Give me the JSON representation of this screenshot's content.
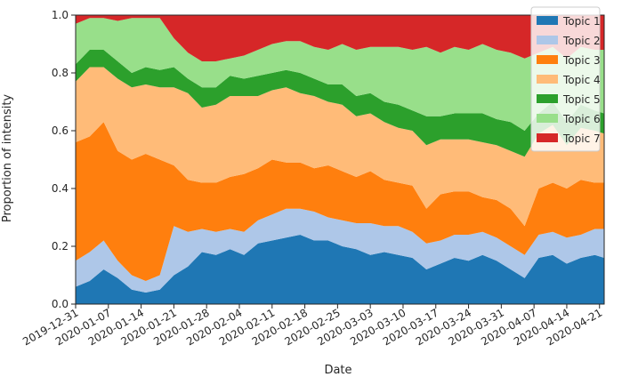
{
  "chart_data": {
    "type": "area",
    "stacked": true,
    "normalized": true,
    "title": "",
    "xlabel": "Date",
    "ylabel": "Proportion of intensity",
    "ylim": [
      0.0,
      1.0
    ],
    "xlim": [
      "2019-12-31",
      "2020-04-22"
    ],
    "yticks": [
      "0.0",
      "0.2",
      "0.4",
      "0.6",
      "0.8",
      "1.0"
    ],
    "xticks": [
      "2019-12-31",
      "2020-01-07",
      "2020-01-14",
      "2020-01-21",
      "2020-01-28",
      "2020-02-04",
      "2020-02-11",
      "2020-02-18",
      "2020-02-25",
      "2020-03-03",
      "2020-03-10",
      "2020-03-17",
      "2020-03-24",
      "2020-03-31",
      "2020-04-07",
      "2020-04-14",
      "2020-04-21"
    ],
    "grid": false,
    "legend_position": "top-right",
    "x": [
      "2019-12-31",
      "2020-01-03",
      "2020-01-06",
      "2020-01-09",
      "2020-01-12",
      "2020-01-15",
      "2020-01-18",
      "2020-01-21",
      "2020-01-24",
      "2020-01-27",
      "2020-01-30",
      "2020-02-02",
      "2020-02-05",
      "2020-02-08",
      "2020-02-11",
      "2020-02-14",
      "2020-02-17",
      "2020-02-20",
      "2020-02-23",
      "2020-02-26",
      "2020-02-29",
      "2020-03-03",
      "2020-03-06",
      "2020-03-09",
      "2020-03-12",
      "2020-03-15",
      "2020-03-18",
      "2020-03-21",
      "2020-03-24",
      "2020-03-27",
      "2020-03-30",
      "2020-04-02",
      "2020-04-05",
      "2020-04-08",
      "2020-04-11",
      "2020-04-14",
      "2020-04-17",
      "2020-04-20",
      "2020-04-22"
    ],
    "series": [
      {
        "name": "Topic 1",
        "color": "#1f77b4",
        "values": [
          0.06,
          0.08,
          0.12,
          0.09,
          0.05,
          0.04,
          0.05,
          0.1,
          0.13,
          0.18,
          0.17,
          0.19,
          0.17,
          0.21,
          0.22,
          0.23,
          0.24,
          0.22,
          0.22,
          0.2,
          0.19,
          0.17,
          0.18,
          0.17,
          0.16,
          0.12,
          0.14,
          0.16,
          0.15,
          0.17,
          0.15,
          0.12,
          0.09,
          0.16,
          0.17,
          0.14,
          0.16,
          0.17,
          0.16
        ]
      },
      {
        "name": "Topic 2",
        "color": "#aec7e8",
        "values": [
          0.09,
          0.1,
          0.1,
          0.06,
          0.05,
          0.04,
          0.05,
          0.17,
          0.12,
          0.08,
          0.08,
          0.07,
          0.08,
          0.08,
          0.09,
          0.1,
          0.09,
          0.1,
          0.08,
          0.09,
          0.09,
          0.11,
          0.09,
          0.1,
          0.09,
          0.09,
          0.08,
          0.08,
          0.09,
          0.08,
          0.08,
          0.08,
          0.08,
          0.08,
          0.08,
          0.09,
          0.08,
          0.09,
          0.1
        ]
      },
      {
        "name": "Topic 3",
        "color": "#ff7f0e",
        "values": [
          0.41,
          0.4,
          0.41,
          0.38,
          0.4,
          0.44,
          0.4,
          0.21,
          0.18,
          0.16,
          0.17,
          0.18,
          0.2,
          0.18,
          0.19,
          0.16,
          0.16,
          0.15,
          0.18,
          0.17,
          0.16,
          0.18,
          0.16,
          0.15,
          0.16,
          0.12,
          0.16,
          0.15,
          0.15,
          0.12,
          0.13,
          0.13,
          0.1,
          0.16,
          0.17,
          0.17,
          0.19,
          0.16,
          0.16
        ]
      },
      {
        "name": "Topic 4",
        "color": "#ffbb78",
        "values": [
          0.21,
          0.24,
          0.19,
          0.25,
          0.25,
          0.24,
          0.25,
          0.27,
          0.3,
          0.26,
          0.27,
          0.28,
          0.27,
          0.25,
          0.24,
          0.26,
          0.24,
          0.25,
          0.22,
          0.23,
          0.21,
          0.2,
          0.2,
          0.19,
          0.19,
          0.22,
          0.19,
          0.18,
          0.18,
          0.19,
          0.19,
          0.2,
          0.24,
          0.19,
          0.2,
          0.15,
          0.18,
          0.18,
          0.17
        ]
      },
      {
        "name": "Topic 5",
        "color": "#2ca02c",
        "values": [
          0.06,
          0.06,
          0.06,
          0.06,
          0.05,
          0.06,
          0.06,
          0.07,
          0.05,
          0.07,
          0.06,
          0.07,
          0.06,
          0.07,
          0.06,
          0.06,
          0.07,
          0.06,
          0.06,
          0.07,
          0.07,
          0.07,
          0.07,
          0.08,
          0.07,
          0.1,
          0.08,
          0.09,
          0.09,
          0.1,
          0.09,
          0.1,
          0.09,
          0.07,
          0.08,
          0.08,
          0.08,
          0.07,
          0.07
        ]
      },
      {
        "name": "Topic 6",
        "color": "#98df8a",
        "values": [
          0.14,
          0.11,
          0.11,
          0.14,
          0.19,
          0.17,
          0.18,
          0.1,
          0.09,
          0.09,
          0.09,
          0.06,
          0.08,
          0.09,
          0.1,
          0.1,
          0.11,
          0.11,
          0.12,
          0.14,
          0.16,
          0.16,
          0.19,
          0.2,
          0.21,
          0.24,
          0.22,
          0.23,
          0.22,
          0.24,
          0.24,
          0.24,
          0.25,
          0.21,
          0.19,
          0.22,
          0.2,
          0.21,
          0.22
        ]
      },
      {
        "name": "Topic 7",
        "color": "#d62728",
        "values": [
          0.03,
          0.01,
          0.01,
          0.02,
          0.01,
          0.01,
          0.01,
          0.08,
          0.13,
          0.16,
          0.16,
          0.15,
          0.14,
          0.12,
          0.1,
          0.09,
          0.09,
          0.11,
          0.12,
          0.1,
          0.12,
          0.11,
          0.11,
          0.11,
          0.12,
          0.11,
          0.13,
          0.11,
          0.12,
          0.1,
          0.12,
          0.13,
          0.15,
          0.13,
          0.11,
          0.15,
          0.11,
          0.12,
          0.12
        ]
      }
    ]
  }
}
